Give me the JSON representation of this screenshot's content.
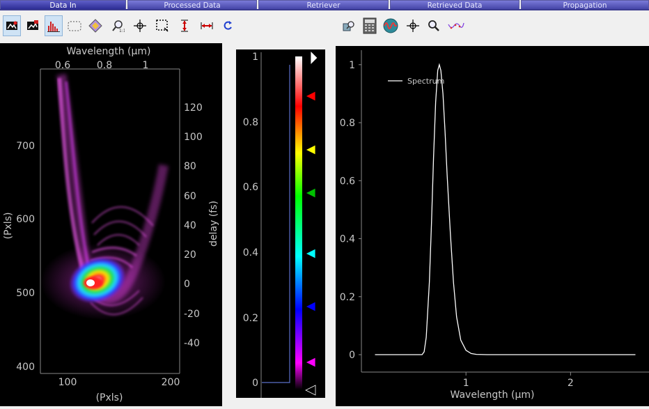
{
  "tabs": [
    {
      "label": "Data In",
      "active": true
    },
    {
      "label": "Processed Data",
      "active": false
    },
    {
      "label": "Retriever",
      "active": false
    },
    {
      "label": "Retrieved Data",
      "active": false
    },
    {
      "label": "Propagation",
      "active": false
    }
  ],
  "left_toolbar": [
    {
      "icon": "load-trace-icon",
      "active": true
    },
    {
      "icon": "load-data-icon",
      "active": false
    },
    {
      "icon": "histogram-icon",
      "active": true
    },
    {
      "icon": "roi-icon",
      "active": false
    },
    {
      "icon": "colormap-icon",
      "active": false
    },
    {
      "icon": "zoom-reset-icon",
      "active": false
    },
    {
      "icon": "crosshair-icon",
      "active": false
    },
    {
      "icon": "select-region-icon",
      "active": false
    },
    {
      "icon": "vertical-span-icon",
      "active": false
    },
    {
      "icon": "horizontal-span-icon",
      "active": false
    },
    {
      "icon": "refresh-icon",
      "active": false
    }
  ],
  "right_toolbar": [
    {
      "icon": "zoom-fit-icon"
    },
    {
      "icon": "calculator-icon"
    },
    {
      "icon": "oscilloscope-icon"
    },
    {
      "icon": "crosshair-icon"
    },
    {
      "icon": "zoom-icon"
    },
    {
      "icon": "curve-icon"
    }
  ],
  "trace_plot": {
    "top_axis_label": "Wavelength (µm)",
    "top_ticks": [
      "0.6",
      "0.8",
      "1"
    ],
    "left_axis_label": "(Pxls)",
    "left_ticks": [
      "700",
      "600",
      "500",
      "400"
    ],
    "right_axis_label": "delay (fs)",
    "right_ticks": [
      "120",
      "100",
      "80",
      "60",
      "40",
      "20",
      "0",
      "-20",
      "-40"
    ],
    "bottom_axis_label": "(Pxls)",
    "bottom_ticks": [
      "100",
      "200"
    ]
  },
  "colorbar": {
    "ticks": [
      "1",
      "0.8",
      "0.6",
      "0.4",
      "0.2",
      "0"
    ],
    "gradient_colors": [
      "#ffffff",
      "#ff0000",
      "#ffff00",
      "#00ff00",
      "#00ffff",
      "#0000ff",
      "#ff00ff",
      "#000000"
    ],
    "handle_colors": [
      "#ffffff",
      "#ff0000",
      "#ffff00",
      "#00c000",
      "#00ffff",
      "#0000ff",
      "#ff00ff",
      "#000000"
    ]
  },
  "chart_data": {
    "type": "line",
    "series": [
      {
        "name": "Spectrum",
        "x": [
          0.13,
          0.5,
          0.55,
          0.58,
          0.6,
          0.62,
          0.65,
          0.67,
          0.69,
          0.71,
          0.73,
          0.745,
          0.76,
          0.78,
          0.8,
          0.82,
          0.85,
          0.88,
          0.91,
          0.95,
          1.0,
          1.05,
          1.1,
          1.2,
          1.5,
          2.0,
          2.5,
          2.62
        ],
        "y": [
          0,
          0,
          0,
          0,
          0.01,
          0.06,
          0.25,
          0.45,
          0.68,
          0.87,
          0.98,
          1.0,
          0.98,
          0.9,
          0.77,
          0.62,
          0.42,
          0.25,
          0.13,
          0.05,
          0.015,
          0.004,
          0.001,
          0,
          0,
          0,
          0,
          0
        ]
      }
    ],
    "xlabel": "Wavelength (µm)",
    "ylabel": "",
    "xticks": [
      "1",
      "2"
    ],
    "yticks": [
      "1",
      "0.8",
      "0.6",
      "0.4",
      "0.2",
      "0"
    ],
    "xlim": [
      0,
      2.75
    ],
    "ylim": [
      -0.06,
      1.05
    ],
    "legend": "top-left",
    "grid": false
  }
}
